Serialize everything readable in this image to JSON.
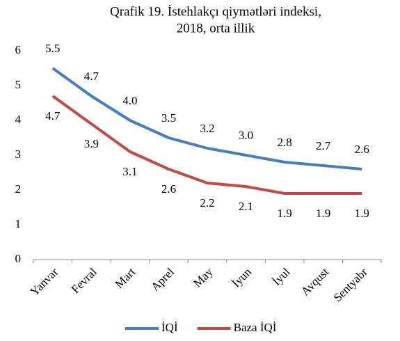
{
  "chart_data": {
    "type": "line",
    "title": [
      "Qrafik 19. İstehlakçı qiymətləri indeksi,",
      "2018, orta illik"
    ],
    "categories": [
      "Yanvar",
      "Fevral",
      "Mart",
      "Aprel",
      "May",
      "İyun",
      "İyul",
      "Avqust",
      "Sentyabr"
    ],
    "series": [
      {
        "name": "İQİ",
        "color": "#4a7ebb",
        "values": [
          5.5,
          4.7,
          4.0,
          3.5,
          3.2,
          3.0,
          2.8,
          2.7,
          2.6
        ],
        "value_labels": [
          "5.5",
          "4.7",
          "4.0",
          "3.5",
          "3.2",
          "3.0",
          "2.8",
          "2.7",
          "2.6"
        ]
      },
      {
        "name": "Baza İQİ",
        "color": "#be4b48",
        "values": [
          4.7,
          3.9,
          3.1,
          2.6,
          2.2,
          2.1,
          1.9,
          1.9,
          1.9
        ],
        "value_labels": [
          "4.7",
          "3.9",
          "3.1",
          "2.6",
          "2.2",
          "2.1",
          "1.9",
          "1.9",
          "1.9"
        ]
      }
    ],
    "ylim": [
      0,
      6
    ],
    "yticks": [
      0,
      1,
      2,
      3,
      4,
      5,
      6
    ],
    "grid": false,
    "legend": "bottom"
  }
}
